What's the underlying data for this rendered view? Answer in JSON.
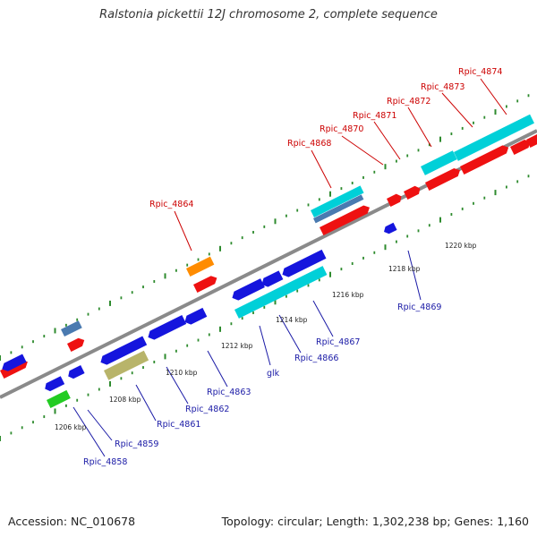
{
  "title": "Ralstonia pickettii 12J chromosome 2, complete sequence",
  "footer": {
    "accession": "Accession: NC_010678",
    "info": "Topology: circular; Length: 1,302,238 bp; Genes: 1,160"
  },
  "ticks": [
    "1206 kbp",
    "1208 kbp",
    "1210 kbp",
    "1212 kbp",
    "1214 kbp",
    "1216 kbp",
    "1218 kbp",
    "1220 kbp"
  ],
  "top_labels": [
    "Rpic_4864",
    "Rpic_4868",
    "Rpic_4870",
    "Rpic_4871",
    "Rpic_4872",
    "Rpic_4873",
    "Rpic_4874"
  ],
  "bottom_labels": [
    "Rpic_4858",
    "Rpic_4859",
    "Rpic_4861",
    "Rpic_4862",
    "Rpic_4863",
    "glk",
    "Rpic_4866",
    "Rpic_4867",
    "Rpic_4869"
  ],
  "colors": {
    "top_label": "#cc0000",
    "bottom_label": "#1a1aa6",
    "backbone": "#8a8a8a",
    "dots": "#2e8b2e",
    "red": "#ee1111",
    "blue": "#1515dd",
    "cyan": "#00d0d8",
    "orange": "#ff8c00",
    "green": "#22cc22",
    "olive": "#b8b46a",
    "steel": "#4a7ab0"
  }
}
